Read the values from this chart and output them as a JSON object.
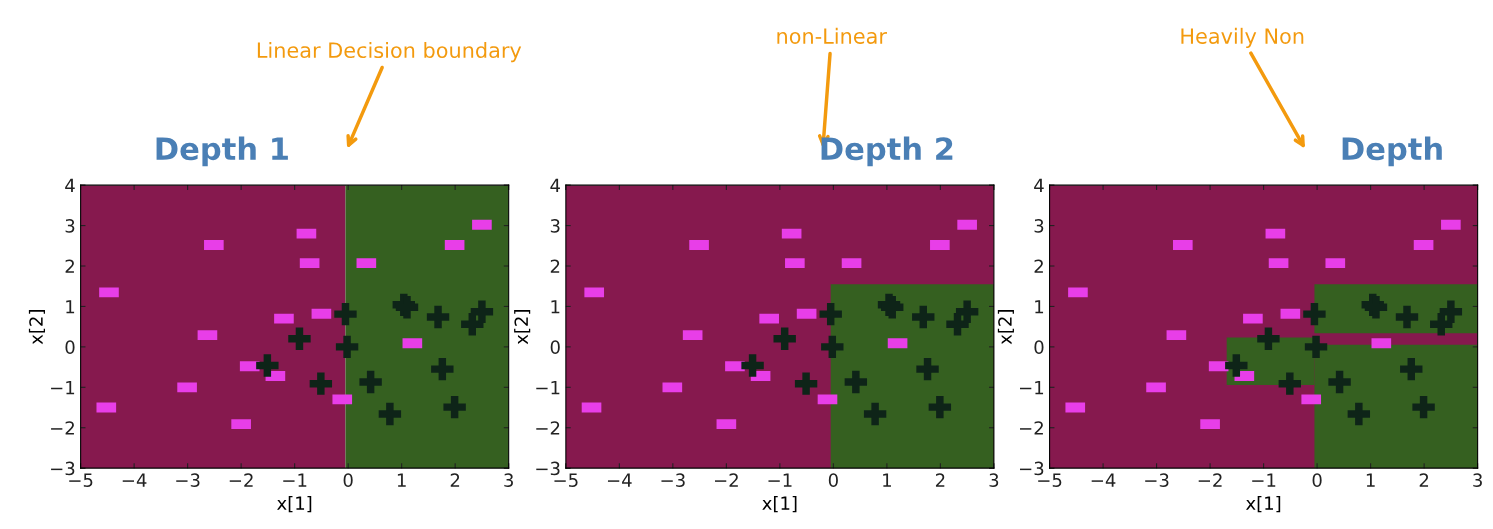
{
  "chart_data": [
    {
      "type": "scatter",
      "title": "Depth 1",
      "xlabel": "x[1]",
      "ylabel": "x[2]",
      "xlim": [
        -5,
        3
      ],
      "ylim": [
        -3,
        4
      ],
      "xticks": [
        -5,
        -4,
        -3,
        -2,
        -1,
        0,
        1,
        2,
        3
      ],
      "yticks": [
        -3,
        -2,
        -1,
        0,
        1,
        2,
        3,
        4
      ],
      "annotations": [
        "Linear Decision boundary"
      ],
      "bands": [
        {
          "axis": "x",
          "from": -5,
          "to": -0.05,
          "color": "#86194e"
        },
        {
          "axis": "x",
          "from": -0.05,
          "to": 3,
          "color": "#356020"
        }
      ],
      "series": [
        {
          "marker": "square",
          "color": "#e83ee8",
          "x": [
            -4.47,
            -2.51,
            -0.78,
            -0.72,
            0.34,
            1.99,
            2.5,
            -2.63,
            -1.2,
            -0.5,
            1.2,
            -1.84,
            -1.36,
            -3.01,
            -4.52,
            -2.0,
            -0.11
          ],
          "values": [
            1.35,
            2.52,
            2.8,
            2.07,
            2.07,
            2.52,
            3.02,
            0.29,
            0.7,
            0.82,
            0.09,
            -0.48,
            -0.72,
            -1.0,
            -1.5,
            -1.91,
            -1.3
          ]
        },
        {
          "marker": "cross",
          "color": "#0e2418",
          "x": [
            -1.51,
            -0.91,
            -0.51,
            -0.05,
            -0.02,
            0.42,
            0.78,
            1.04,
            1.1,
            1.68,
            1.76,
            1.99,
            2.32,
            2.5
          ],
          "values": [
            -0.46,
            0.2,
            -0.91,
            0.81,
            0.0,
            -0.87,
            -1.66,
            1.04,
            0.98,
            0.74,
            -0.55,
            -1.49,
            0.56,
            0.87
          ]
        }
      ]
    },
    {
      "type": "scatter",
      "title": "Depth 2",
      "xlabel": "x[1]",
      "ylabel": "x[2]",
      "xlim": [
        -5,
        3
      ],
      "ylim": [
        -3,
        4
      ],
      "xticks": [
        -5,
        -4,
        -3,
        -2,
        -1,
        0,
        1,
        2,
        3
      ],
      "yticks": [
        -3,
        -2,
        -1,
        0,
        1,
        2,
        3,
        4
      ],
      "annotations": [
        "non-Linear"
      ],
      "bands": [
        {
          "axis": "x",
          "from": -5,
          "to": 3,
          "color": "#86194e"
        }
      ],
      "series": [
        {
          "type": "area",
          "color": "#356020",
          "x": [
            -0.05,
            -0.05,
            3,
            3
          ],
          "values": [
            -3,
            1.55,
            1.55,
            -3
          ]
        },
        {
          "marker": "square",
          "color": "#e83ee8",
          "x": [
            -4.47,
            -2.51,
            -0.78,
            -0.72,
            0.34,
            1.99,
            2.5,
            -2.63,
            -1.2,
            -0.5,
            1.2,
            -1.84,
            -1.36,
            -3.01,
            -4.52,
            -2.0,
            -0.11
          ],
          "values": [
            1.35,
            2.52,
            2.8,
            2.07,
            2.07,
            2.52,
            3.02,
            0.29,
            0.7,
            0.82,
            0.09,
            -0.48,
            -0.72,
            -1.0,
            -1.5,
            -1.91,
            -1.3
          ]
        },
        {
          "marker": "cross",
          "color": "#0e2418",
          "x": [
            -1.51,
            -0.91,
            -0.51,
            -0.05,
            -0.02,
            0.42,
            0.78,
            1.04,
            1.1,
            1.68,
            1.76,
            1.99,
            2.32,
            2.5
          ],
          "values": [
            -0.46,
            0.2,
            -0.91,
            0.81,
            0.0,
            -0.87,
            -1.66,
            1.04,
            0.98,
            0.74,
            -0.55,
            -1.49,
            0.56,
            0.87
          ]
        }
      ]
    },
    {
      "type": "scatter",
      "title": "Depth",
      "xlabel": "x[1]",
      "ylabel": "x[2]",
      "xlim": [
        -5,
        3
      ],
      "ylim": [
        -3,
        4
      ],
      "xticks": [
        -5,
        -4,
        -3,
        -2,
        -1,
        0,
        1,
        2,
        3
      ],
      "yticks": [
        -3,
        -2,
        -1,
        0,
        1,
        2,
        3,
        4
      ],
      "annotations": [
        "Heavily Non"
      ],
      "bands": [
        {
          "axis": "x",
          "from": -5,
          "to": 3,
          "color": "#86194e"
        }
      ],
      "series": [
        {
          "type": "area",
          "color": "#356020",
          "x": [
            -0.05,
            -0.05,
            3,
            3
          ],
          "values": [
            0.34,
            1.55,
            1.55,
            0.34
          ]
        },
        {
          "type": "area",
          "color": "#356020",
          "x": [
            -0.05,
            -0.05,
            3,
            3
          ],
          "values": [
            -3,
            0.05,
            0.05,
            -3
          ]
        },
        {
          "type": "area",
          "color": "#356020",
          "x": [
            -1.69,
            -1.69,
            -0.05,
            -0.05
          ],
          "values": [
            -0.94,
            0.23,
            0.23,
            -0.94
          ]
        },
        {
          "marker": "square",
          "color": "#e83ee8",
          "x": [
            -4.47,
            -2.51,
            -0.78,
            -0.72,
            0.34,
            1.99,
            2.5,
            -2.63,
            -1.2,
            -0.5,
            1.2,
            -1.84,
            -1.36,
            -3.01,
            -4.52,
            -2.0,
            -0.11
          ],
          "values": [
            1.35,
            2.52,
            2.8,
            2.07,
            2.07,
            2.52,
            3.02,
            0.29,
            0.7,
            0.82,
            0.09,
            -0.48,
            -0.72,
            -1.0,
            -1.5,
            -1.91,
            -1.3
          ]
        },
        {
          "marker": "cross",
          "color": "#0e2418",
          "x": [
            -1.51,
            -0.91,
            -0.51,
            -0.05,
            -0.02,
            0.42,
            0.78,
            1.04,
            1.1,
            1.68,
            1.76,
            1.99,
            2.32,
            2.5
          ],
          "values": [
            -0.46,
            0.2,
            -0.91,
            0.81,
            0.0,
            -0.87,
            -1.66,
            1.04,
            0.98,
            0.74,
            -0.55,
            -1.49,
            0.56,
            0.87
          ]
        }
      ]
    }
  ]
}
